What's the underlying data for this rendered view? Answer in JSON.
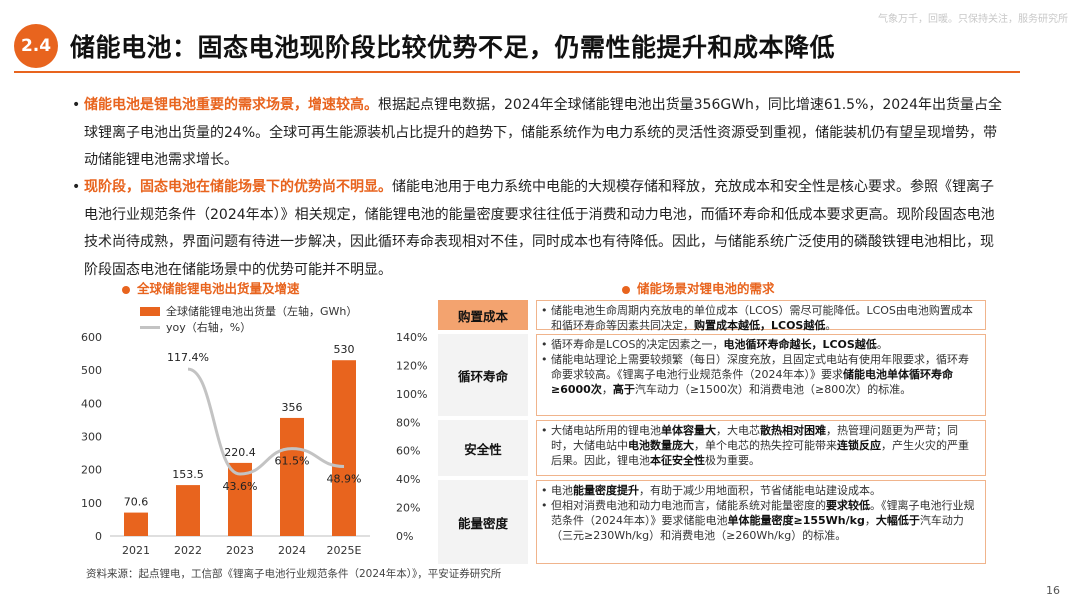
{
  "header": {
    "badge": "2.4",
    "title": "储能电池：固态电池现阶段比较优势不足，仍需性能提升和成本降低",
    "watermark": "气象万千，回暖。只保持关注，服务研究所"
  },
  "bullets": [
    {
      "highlight": "储能电池是锂电池重要的需求场景，增速较高。",
      "text": "根据起点锂电数据，2024年全球储能锂电池出货量356GWh，同比增速61.5%，2024年出货量占全球锂离子电池出货量的24%。全球可再生能源装机占比提升的趋势下，储能系统作为电力系统的灵活性资源受到重视，储能装机仍有望呈现增势，带动储能锂电池需求增长。"
    },
    {
      "highlight": "现阶段，固态电池在储能场景下的优势尚不明显。",
      "text": "储能电池用于电力系统中电能的大规模存储和释放，充放成本和安全性是核心要求。参照《锂离子电池行业规范条件（2024年本）》相关规定，储能锂电池的能量密度要求往往低于消费和动力电池，而循环寿命和低成本要求更高。现阶段固态电池技术尚待成熟，界面问题有待进一步解决，因此循环寿命表现相对不佳，同时成本也有待降低。因此，与储能系统广泛使用的磷酸铁锂电池相比，现阶段固态电池在储能场景中的优势可能并不明显。"
    }
  ],
  "chart_title": "全球储能锂电池出货量及增速",
  "chart_data": {
    "type": "bar",
    "categories": [
      "2021",
      "2022",
      "2023",
      "2024",
      "2025E"
    ],
    "series": [
      {
        "name": "全球储能锂电池出货量（左轴，GWh）",
        "type": "bar",
        "axis": "left",
        "values": [
          70.6,
          153.5,
          220.4,
          356,
          530
        ],
        "labels": [
          "70.6",
          "153.5",
          "220.4",
          "356",
          "530"
        ]
      },
      {
        "name": "yoy（右轴，%）",
        "type": "line",
        "axis": "right",
        "values": [
          null,
          117.4,
          43.6,
          61.5,
          48.9
        ],
        "labels": [
          "",
          "117.4%",
          "43.6%",
          "61.5%",
          "48.9%"
        ]
      }
    ],
    "y_left": {
      "min": 0,
      "max": 600,
      "ticks": [
        "0",
        "100",
        "200",
        "300",
        "400",
        "500",
        "600"
      ]
    },
    "y_right": {
      "min": 0,
      "max": 140,
      "ticks": [
        "0%",
        "20%",
        "40%",
        "60%",
        "80%",
        "100%",
        "120%",
        "140%"
      ]
    },
    "colors": {
      "bar": "#e8641e",
      "line": "#c3c3c3"
    }
  },
  "table_title": "储能场景对锂电池的需求",
  "table": [
    {
      "label": "购置成本",
      "items": [
        [
          {
            "t": "储能电池生命周期内充放电的单位成本（LCOS）需尽可能降低。LCOS由电池购置成本和循环寿命等因素共同决定，"
          },
          {
            "t": "购置成本越低，LCOS越低",
            "b": true
          },
          {
            "t": "。"
          }
        ]
      ]
    },
    {
      "label": "循环寿命",
      "items": [
        [
          {
            "t": "循环寿命是LCOS的决定因素之一，"
          },
          {
            "t": "电池循环寿命越长，LCOS越低",
            "b": true
          },
          {
            "t": "。"
          }
        ],
        [
          {
            "t": "储能电站理论上需要较频繁（每日）深度充放，且固定式电站有使用年限要求，循环寿命要求较高。《锂离子电池行业规范条件（2024年本）》要求"
          },
          {
            "t": "储能电池单体循环寿命≥6000次",
            "b": true
          },
          {
            "t": "，"
          },
          {
            "t": "高于",
            "b": true
          },
          {
            "t": "汽车动力（≥1500次）和消费电池（≥800次）的标准。"
          }
        ]
      ]
    },
    {
      "label": "安全性",
      "items": [
        [
          {
            "t": "大储电站所用的锂电池"
          },
          {
            "t": "单体容量大",
            "b": true
          },
          {
            "t": "，大电芯"
          },
          {
            "t": "散热相对困难",
            "b": true
          },
          {
            "t": "，热管理问题更为严苛；同时，大储电站中"
          },
          {
            "t": "电池数量庞大",
            "b": true
          },
          {
            "t": "，单个电芯的热失控可能带来"
          },
          {
            "t": "连锁反应",
            "b": true
          },
          {
            "t": "，产生火灾的严重后果。因此，锂电池"
          },
          {
            "t": "本征安全性",
            "b": true
          },
          {
            "t": "极为重要。"
          }
        ]
      ]
    },
    {
      "label": "能量密度",
      "items": [
        [
          {
            "t": "电池"
          },
          {
            "t": "能量密度提升",
            "b": true
          },
          {
            "t": "，有助于减少用地面积，节省储能电站建设成本。"
          }
        ],
        [
          {
            "t": "但相对消费电池和动力电池而言，储能系统对能量密度的"
          },
          {
            "t": "要求较低",
            "b": true
          },
          {
            "t": "。《锂离子电池行业规范条件（2024年本）》要求储能电池"
          },
          {
            "t": "单体能量密度≥155Wh/kg",
            "b": true
          },
          {
            "t": "，"
          },
          {
            "t": "大幅低于",
            "b": true
          },
          {
            "t": "汽车动力（三元≥230Wh/kg）和消费电池（≥260Wh/kg）的标准。"
          }
        ]
      ]
    }
  ],
  "footer": {
    "source": "资料来源：起点锂电，工信部《锂离子电池行业规范条件（2024年本）》，平安证券研究所",
    "page": "16"
  }
}
